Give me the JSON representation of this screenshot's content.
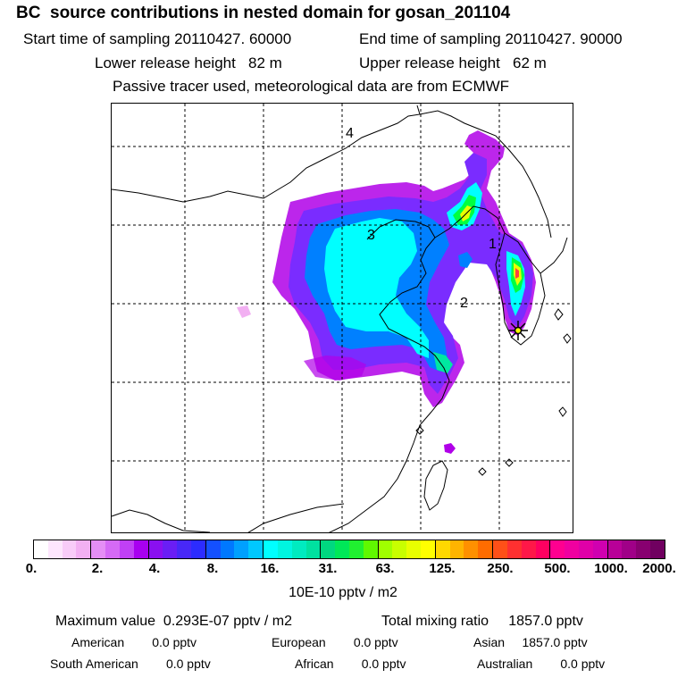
{
  "header": {
    "title": "BC  source contributions in nested domain for gosan_201104",
    "start_label": "Start time of sampling 20110427. 60000",
    "end_label": "End time of sampling 20110427. 90000",
    "lower_label": "Lower release height   82 m",
    "upper_label": "Upper release height   62 m",
    "tracer_label": "Passive tracer used, meteorological data are from ECMWF"
  },
  "map": {
    "region_labels": [
      "4",
      "3",
      "2",
      "1"
    ],
    "receptor_icon": "asterisk-star-icon",
    "plume_colors": [
      "#b000e8",
      "#7a2cff",
      "#0080ff",
      "#00ffff",
      "#00e8a0",
      "#00ff40",
      "#e8ff00",
      "#ffc800",
      "#ff4040"
    ]
  },
  "colorbar": {
    "tick_labels": [
      "0.",
      "2.",
      "4.",
      "8.",
      "16.",
      "31.",
      "63.",
      "125.",
      "250.",
      "500.",
      "1000.",
      "2000."
    ],
    "unit": "10E-10 pptv / m2",
    "colors": [
      [
        "#ffffff",
        "#fde6fd",
        "#f8ccf8",
        "#f2b0f2"
      ],
      [
        "#e58ef5",
        "#d56af5",
        "#c040f5",
        "#a800f0"
      ],
      [
        "#8a10f0",
        "#6a1ef5",
        "#4828f8",
        "#2c2cff"
      ],
      [
        "#1450ff",
        "#0078ff",
        "#00a0ff",
        "#00c8ff"
      ],
      [
        "#00ffff",
        "#00f5e0",
        "#00ebc0",
        "#00e1a0"
      ],
      [
        "#00d880",
        "#00e858",
        "#20f030",
        "#60f800"
      ],
      [
        "#a0ff00",
        "#c8ff00",
        "#e8ff00",
        "#ffff00"
      ],
      [
        "#ffd800",
        "#ffb400",
        "#ff9000",
        "#ff6c00"
      ],
      [
        "#ff5018",
        "#ff3030",
        "#ff1848",
        "#ff0060"
      ],
      [
        "#ff0090",
        "#f000a0",
        "#e000a8",
        "#d000b0"
      ],
      [
        "#b80098",
        "#a00088",
        "#880070",
        "#700060"
      ]
    ]
  },
  "summary": {
    "max_label": "Maximum value  0.293E-07 pptv / m2",
    "total_label": "Total mixing ratio     1857.0 pptv",
    "american": "American        0.0 pptv",
    "european": "European        0.0 pptv",
    "asian": "Asian     1857.0 pptv",
    "south_american": "South American        0.0 pptv",
    "african": "African        0.0 pptv",
    "australian": "Australian        0.0 pptv"
  }
}
